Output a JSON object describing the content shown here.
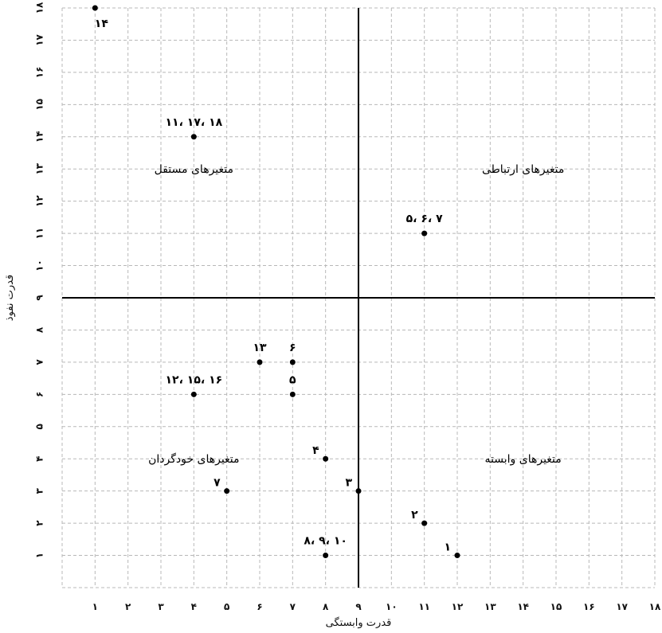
{
  "chart_data": {
    "type": "scatter",
    "xlabel": "قدرت وابستگی",
    "ylabel": "قدرت نفوذ",
    "xlim": [
      0,
      18
    ],
    "ylim": [
      0,
      18
    ],
    "x_ticks": [
      1,
      2,
      3,
      4,
      5,
      6,
      7,
      8,
      9,
      10,
      11,
      12,
      13,
      14,
      15,
      16,
      17,
      18
    ],
    "x_tick_labels": [
      "۱",
      "۲",
      "۳",
      "۴",
      "۵",
      "۶",
      "۷",
      "۸",
      "۹",
      "۱۰",
      "۱۱",
      "۱۲",
      "۱۳",
      "۱۴",
      "۱۵",
      "۱۶",
      "۱۷",
      "۱۸"
    ],
    "y_ticks": [
      1,
      2,
      3,
      4,
      5,
      6,
      7,
      8,
      9,
      10,
      11,
      12,
      13,
      14,
      15,
      16,
      17,
      18
    ],
    "y_tick_labels": [
      "۱",
      "۲",
      "۳",
      "۴",
      "۵",
      "۶",
      "۷",
      "۸",
      "۹",
      "۱۰",
      "۱۱",
      "۱۲",
      "۱۳",
      "۱۴",
      "۱۵",
      "۱۶",
      "۱۷",
      "۱۸"
    ],
    "grid": true,
    "divider": {
      "x": 9,
      "y": 9
    },
    "quadrant_labels": [
      {
        "text": "متغیرهای مستقل",
        "x": 4,
        "y": 13
      },
      {
        "text": "متغیرهای ارتباطی",
        "x": 14,
        "y": 13
      },
      {
        "text": "متغیرهای خودگردان",
        "x": 4,
        "y": 4
      },
      {
        "text": "متغیرهای وابسته",
        "x": 14,
        "y": 4
      }
    ],
    "points": [
      {
        "x": 1,
        "y": 18,
        "label": "۱۴",
        "label_pos": "below"
      },
      {
        "x": 4,
        "y": 14,
        "label": "۱۱، ۱۷، ۱۸",
        "label_pos": "above"
      },
      {
        "x": 11,
        "y": 11,
        "label": "۵، ۶، ۷",
        "label_pos": "above"
      },
      {
        "x": 6,
        "y": 7,
        "label": "۱۳",
        "label_pos": "above"
      },
      {
        "x": 7,
        "y": 7,
        "label": "۶",
        "label_pos": "above"
      },
      {
        "x": 4,
        "y": 6,
        "label": "۱۲، ۱۵، ۱۶",
        "label_pos": "above"
      },
      {
        "x": 7,
        "y": 6,
        "label": "۵",
        "label_pos": "above"
      },
      {
        "x": 8,
        "y": 4,
        "label": "۴",
        "label_pos": "left"
      },
      {
        "x": 5,
        "y": 3,
        "label": "۷",
        "label_pos": "left"
      },
      {
        "x": 9,
        "y": 3,
        "label": "۳",
        "label_pos": "left"
      },
      {
        "x": 11,
        "y": 2,
        "label": "۲",
        "label_pos": "left"
      },
      {
        "x": 12,
        "y": 1,
        "label": "۱",
        "label_pos": "left"
      },
      {
        "x": 8,
        "y": 1,
        "label": "۸، ۹، ۱۰",
        "label_pos": "above"
      }
    ]
  }
}
